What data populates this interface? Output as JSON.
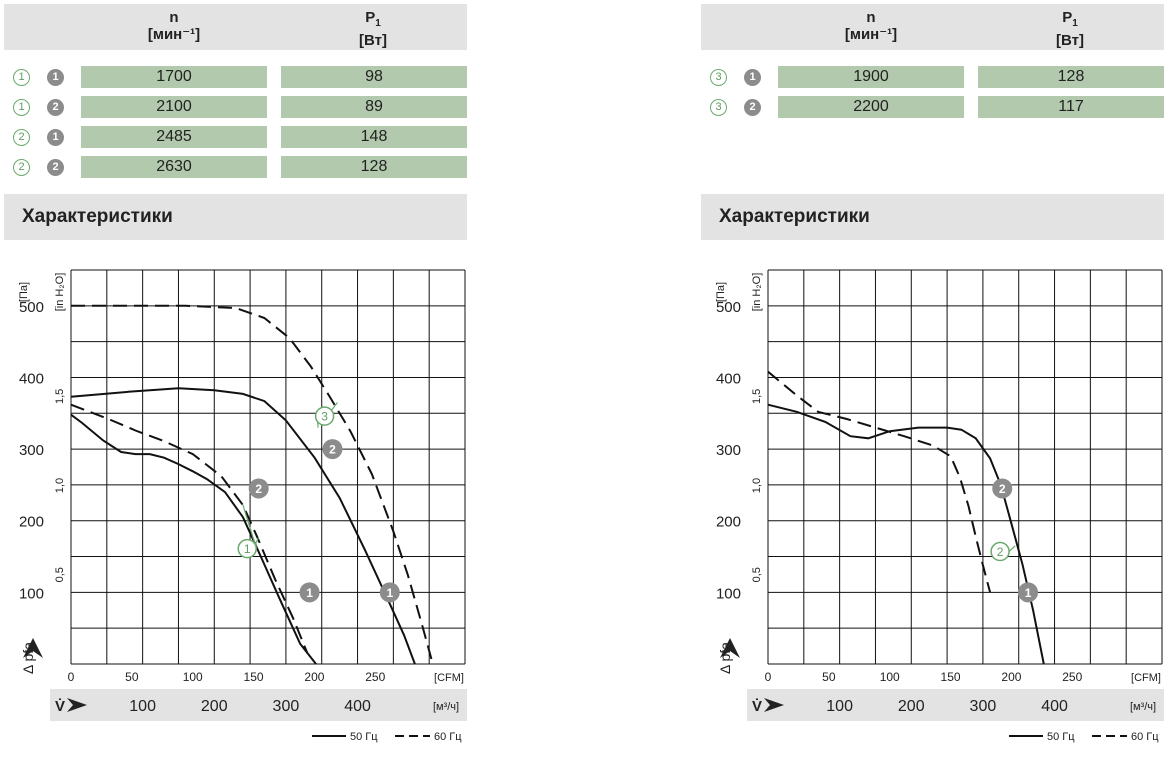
{
  "panels": [
    {
      "table": {
        "col_n": {
          "symbol": "n",
          "unit": "[мин⁻¹]"
        },
        "col_p": {
          "symbol": "P",
          "sub": "1",
          "unit": "[Вт]"
        },
        "rows": [
          {
            "a": "1",
            "b": "1",
            "n": "1700",
            "p": "98"
          },
          {
            "a": "1",
            "b": "2",
            "n": "2100",
            "p": "89"
          },
          {
            "a": "2",
            "b": "1",
            "n": "2485",
            "p": "148"
          },
          {
            "a": "2",
            "b": "2",
            "n": "2630",
            "p": "128"
          }
        ]
      },
      "section_title": "Характеристики"
    },
    {
      "table": {
        "col_n": {
          "symbol": "n",
          "unit": "[мин⁻¹]"
        },
        "col_p": {
          "symbol": "P",
          "sub": "1",
          "unit": "[Вт]"
        },
        "rows": [
          {
            "a": "3",
            "b": "1",
            "n": "1900",
            "p": "128"
          },
          {
            "a": "3",
            "b": "2",
            "n": "2200",
            "p": "117"
          }
        ]
      },
      "section_title": "Характеристики"
    }
  ],
  "chart_data": [
    {
      "type": "line",
      "title": "",
      "xlabel": "V̇",
      "x_unit": "[м³/ч]",
      "x_ticks_m3h": [
        100,
        200,
        300,
        400
      ],
      "x2_unit": "[CFM]",
      "x2_ticks_cfm": [
        0,
        50,
        100,
        150,
        200,
        250
      ],
      "ylabel": "Δ pfa",
      "y_unit": "[Па]",
      "y_ticks_pa": [
        100,
        200,
        300,
        400,
        500
      ],
      "y2_unit": "[in H₂O]",
      "y2_ticks_inh2o": [
        "0,5",
        "1,0",
        "1,5"
      ],
      "xlim_m3h": [
        0,
        550
      ],
      "ylim_pa": [
        0,
        550
      ],
      "grid": true,
      "legend": [
        {
          "label": "50 Гц",
          "dash": "solid"
        },
        {
          "label": "60 Гц",
          "dash": "dashed"
        }
      ],
      "series": [
        {
          "name": "1",
          "points": [
            [
              0,
              348
            ],
            [
              15,
              337
            ],
            [
              45,
              312
            ],
            [
              70,
              296
            ],
            [
              90,
              293
            ],
            [
              110,
              293
            ],
            [
              130,
              288
            ],
            [
              150,
              279
            ],
            [
              170,
              269
            ],
            [
              190,
              258
            ],
            [
              215,
              240
            ],
            [
              240,
              205
            ],
            [
              265,
              150
            ],
            [
              290,
              94
            ],
            [
              320,
              28
            ],
            [
              342,
              0
            ]
          ]
        },
        {
          "name": "2",
          "points": [
            [
              0,
              373
            ],
            [
              80,
              380
            ],
            [
              150,
              385
            ],
            [
              200,
              382
            ],
            [
              240,
              377
            ],
            [
              270,
              367
            ],
            [
              300,
              340
            ],
            [
              340,
              288
            ],
            [
              375,
              232
            ],
            [
              410,
              160
            ],
            [
              445,
              84
            ],
            [
              465,
              40
            ],
            [
              480,
              0
            ]
          ]
        },
        {
          "name": "1",
          "points": [
            [
              0,
              362
            ],
            [
              50,
              343
            ],
            [
              90,
              326
            ],
            [
              130,
              311
            ],
            [
              170,
              293
            ],
            [
              210,
              262
            ],
            [
              240,
              222
            ],
            [
              260,
              177
            ],
            [
              285,
              118
            ],
            [
              310,
              64
            ],
            [
              330,
              15
            ]
          ]
        },
        {
          "name": "2",
          "points": [
            [
              0,
              500
            ],
            [
              80,
              500
            ],
            [
              160,
              500
            ],
            [
              230,
              497
            ],
            [
              270,
              483
            ],
            [
              305,
              455
            ],
            [
              335,
              415
            ],
            [
              360,
              375
            ],
            [
              390,
              325
            ],
            [
              420,
              265
            ],
            [
              450,
              185
            ],
            [
              470,
              125
            ],
            [
              490,
              55
            ],
            [
              505,
              0
            ]
          ]
        }
      ],
      "markers": [
        {
          "label": "2",
          "x": 262,
          "y": 245
        },
        {
          "label": "2",
          "x": 365,
          "y": 300
        },
        {
          "label": "1",
          "x": 333,
          "y": 100
        },
        {
          "label": "1",
          "x": 445,
          "y": 100
        },
        {
          "label": "3",
          "x": 354,
          "y": 346
        },
        {
          "label": "1",
          "x": 246,
          "y": 161
        }
      ]
    },
    {
      "type": "line",
      "title": "",
      "xlabel": "V̇",
      "x_unit": "[м³/ч]",
      "x_ticks_m3h": [
        100,
        200,
        300,
        400
      ],
      "x2_unit": "[CFM]",
      "x2_ticks_cfm": [
        0,
        50,
        100,
        150,
        200,
        250
      ],
      "ylabel": "Δ pfa",
      "y_unit": "[Па]",
      "y_ticks_pa": [
        100,
        200,
        300,
        400,
        500
      ],
      "y2_unit": "[in H₂O]",
      "y2_ticks_inh2o": [
        "0,5",
        "1,0",
        "1,5"
      ],
      "xlim_m3h": [
        0,
        550
      ],
      "ylim_pa": [
        0,
        550
      ],
      "grid": true,
      "legend": [
        {
          "label": "50 Гц",
          "dash": "solid"
        },
        {
          "label": "60 Гц",
          "dash": "dashed"
        }
      ],
      "series": [
        {
          "name": "1",
          "points": [
            [
              0,
              362
            ],
            [
              40,
              352
            ],
            [
              80,
              338
            ],
            [
              115,
              318
            ],
            [
              140,
              315
            ],
            [
              170,
              325
            ],
            [
              210,
              330
            ],
            [
              250,
              330
            ],
            [
              270,
              327
            ],
            [
              290,
              315
            ],
            [
              310,
              287
            ],
            [
              325,
              250
            ],
            [
              340,
              195
            ],
            [
              355,
              140
            ],
            [
              370,
              75
            ],
            [
              385,
              0
            ]
          ]
        },
        {
          "name": "2",
          "points": [
            [
              0,
              408
            ],
            [
              40,
              375
            ],
            [
              70,
              352
            ],
            [
              110,
              342
            ],
            [
              150,
              330
            ],
            [
              190,
              318
            ],
            [
              230,
              305
            ],
            [
              255,
              290
            ],
            [
              268,
              260
            ],
            [
              280,
              220
            ],
            [
              290,
              178
            ],
            [
              300,
              138
            ],
            [
              310,
              100
            ]
          ]
        }
      ],
      "markers": [
        {
          "label": "2",
          "x": 327,
          "y": 245
        },
        {
          "label": "1",
          "x": 363,
          "y": 100
        },
        {
          "label": "2",
          "x": 324,
          "y": 157
        }
      ]
    }
  ]
}
